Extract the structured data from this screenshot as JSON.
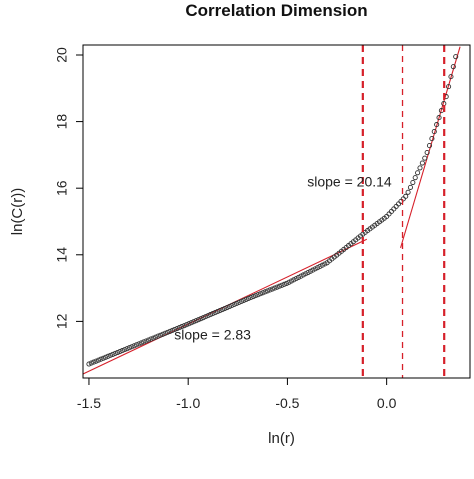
{
  "chart_data": {
    "type": "scatter",
    "title": "Correlation Dimension",
    "xlabel": "ln(r)",
    "ylabel": "ln(C(r))",
    "xlim": [
      -1.53,
      0.42
    ],
    "ylim": [
      10.3,
      20.3
    ],
    "x_ticks": [
      -1.5,
      -1.0,
      -0.5,
      0.0
    ],
    "x_tick_labels": [
      "-1.5",
      "-1.0",
      "-0.5",
      "0.0"
    ],
    "y_ticks": [
      12,
      14,
      16,
      18,
      20
    ],
    "y_tick_labels": [
      "12",
      "14",
      "16",
      "18",
      "20"
    ],
    "grid": false,
    "colors": {
      "points": "#333333",
      "fit_lines": "#d6202a",
      "vlines": "#d6202a",
      "axes": "#000000",
      "text": "#222222"
    },
    "points_curve": [
      {
        "x": -1.5,
        "y": 10.72
      },
      {
        "x": -1.3,
        "y": 11.2
      },
      {
        "x": -1.0,
        "y": 11.92
      },
      {
        "x": -0.7,
        "y": 12.68
      },
      {
        "x": -0.5,
        "y": 13.15
      },
      {
        "x": -0.3,
        "y": 13.76
      },
      {
        "x": -0.12,
        "y": 14.62
      },
      {
        "x": 0.0,
        "y": 15.15
      },
      {
        "x": 0.1,
        "y": 15.78
      },
      {
        "x": 0.2,
        "y": 17.0
      },
      {
        "x": 0.3,
        "y": 18.75
      },
      {
        "x": 0.35,
        "y": 20.0
      }
    ],
    "fit_lines": [
      {
        "slope": 2.83,
        "x_range": [
          -1.53,
          -0.1
        ],
        "anchor": {
          "x": -1.0,
          "y": 11.92
        }
      },
      {
        "slope": 20.14,
        "x_range": [
          0.07,
          0.37
        ],
        "anchor": {
          "x": 0.3,
          "y": 18.84
        }
      }
    ],
    "vlines": [
      {
        "x": -0.12,
        "style": "thick-dashed"
      },
      {
        "x": 0.08,
        "style": "thin-dashed"
      },
      {
        "x": 0.29,
        "style": "thick-dashed"
      }
    ],
    "annotations": [
      {
        "text": "slope = 2.83",
        "x": -1.07,
        "y": 11.45
      },
      {
        "text": "slope = 20.14",
        "x": -0.4,
        "y": 16.05
      }
    ]
  }
}
